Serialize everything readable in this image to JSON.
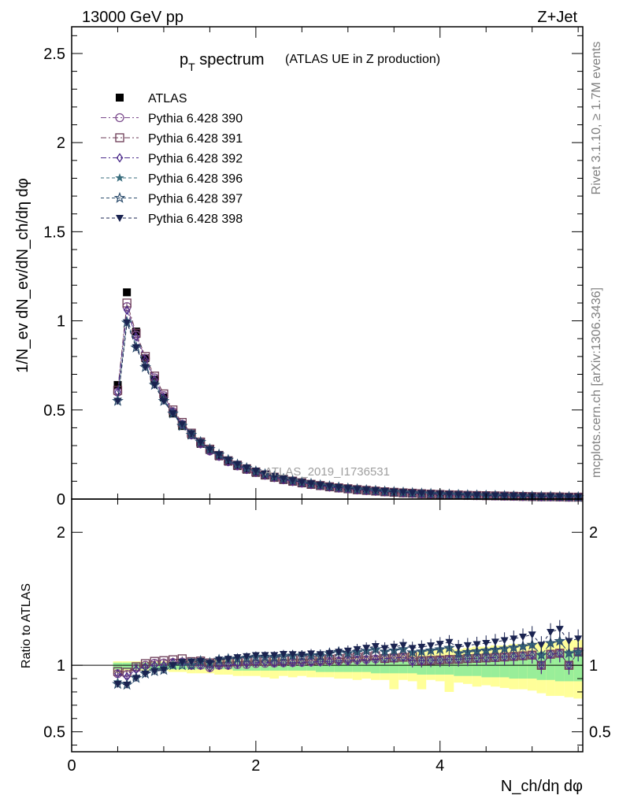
{
  "header": {
    "energy": "13000 GeV pp",
    "process": "Z+Jet"
  },
  "side_labels": {
    "rivet": "Rivet 3.1.10, ≥ 1.7M events",
    "source": "mcplots.cern.ch [arXiv:1306.3436]"
  },
  "watermark": "ATLAS_2019_I1736531",
  "colors": {
    "data": "#000000",
    "p390": "#7b4a8c",
    "p391": "#6b3a55",
    "p392": "#4b2a8a",
    "p396": "#3a6e7e",
    "p397": "#2e4e6e",
    "p398": "#1a2350",
    "band_outer": "#ffff99",
    "band_inner": "#99ee99"
  },
  "chart_data": [
    {
      "type": "line",
      "panel": "main",
      "title_main": "p",
      "title_sub": "T",
      "title_rest": " spectrum",
      "subtitle": "(ATLAS UE in Z production)",
      "ylabel": "1/N_ev dN_ev/dN_ch/dη dφ",
      "ylim": [
        0,
        2.65
      ],
      "yticks": [
        "0",
        "0.5",
        "1",
        "1.5",
        "2",
        "2.5"
      ],
      "ytick_values": [
        0,
        0.5,
        1,
        1.5,
        2,
        2.5
      ],
      "xlim": [
        0,
        5.55
      ],
      "x": [
        0.5,
        0.6,
        0.7,
        0.8,
        0.9,
        1.0,
        1.1,
        1.2,
        1.3,
        1.4,
        1.5,
        1.6,
        1.7,
        1.8,
        1.9,
        2.0,
        2.1,
        2.2,
        2.3,
        2.4,
        2.5,
        2.6,
        2.7,
        2.8,
        2.9,
        3.0,
        3.1,
        3.2,
        3.3,
        3.4,
        3.5,
        3.6,
        3.7,
        3.8,
        3.9,
        4.0,
        4.1,
        4.2,
        4.3,
        4.4,
        4.5,
        4.6,
        4.7,
        4.8,
        4.9,
        5.0,
        5.1,
        5.2,
        5.3,
        5.4,
        5.5
      ],
      "series": [
        {
          "name": "ATLAS",
          "key": "data",
          "marker": "square",
          "values": [
            0.64,
            1.16,
            0.94,
            0.79,
            0.67,
            0.57,
            0.48,
            0.41,
            0.36,
            0.31,
            0.275,
            0.24,
            0.21,
            0.185,
            0.165,
            0.147,
            0.132,
            0.119,
            0.107,
            0.097,
            0.088,
            0.08,
            0.073,
            0.066,
            0.06,
            0.055,
            0.05,
            0.046,
            0.042,
            0.039,
            0.036,
            0.033,
            0.031,
            0.029,
            0.027,
            0.025,
            0.023,
            0.022,
            0.02,
            0.019,
            0.018,
            0.017,
            0.016,
            0.015,
            0.014,
            0.013,
            0.013,
            0.012,
            0.011,
            0.011,
            0.01
          ]
        },
        {
          "name": "Pythia 6.428 390",
          "key": "p390",
          "marker": "circle",
          "values": [
            0.6,
            1.08,
            0.92,
            0.79,
            0.68,
            0.58,
            0.49,
            0.42,
            0.36,
            0.31,
            0.27,
            0.24,
            0.21,
            0.186,
            0.166,
            0.149,
            0.134,
            0.121,
            0.109,
            0.099,
            0.09,
            0.082,
            0.075,
            0.068,
            0.062,
            0.057,
            0.052,
            0.048,
            0.044,
            0.041,
            0.038,
            0.035,
            0.032,
            0.03,
            0.028,
            0.026,
            0.024,
            0.023,
            0.021,
            0.02,
            0.019,
            0.018,
            0.017,
            0.016,
            0.015,
            0.014,
            0.013,
            0.013,
            0.012,
            0.011,
            0.011
          ]
        },
        {
          "name": "Pythia 6.428 391",
          "key": "p391",
          "marker": "square-open",
          "values": [
            0.61,
            1.1,
            0.93,
            0.8,
            0.69,
            0.59,
            0.5,
            0.43,
            0.37,
            0.32,
            0.28,
            0.245,
            0.215,
            0.19,
            0.17,
            0.152,
            0.136,
            0.123,
            0.111,
            0.101,
            0.092,
            0.083,
            0.076,
            0.069,
            0.063,
            0.058,
            0.053,
            0.049,
            0.045,
            0.041,
            0.038,
            0.035,
            0.033,
            0.03,
            0.028,
            0.026,
            0.024,
            0.023,
            0.021,
            0.02,
            0.019,
            0.018,
            0.017,
            0.016,
            0.015,
            0.014,
            0.013,
            0.013,
            0.012,
            0.011,
            0.011
          ]
        },
        {
          "name": "Pythia 6.428 392",
          "key": "p392",
          "marker": "diamond",
          "values": [
            0.6,
            1.06,
            0.91,
            0.78,
            0.67,
            0.57,
            0.49,
            0.42,
            0.36,
            0.31,
            0.27,
            0.24,
            0.21,
            0.187,
            0.167,
            0.15,
            0.135,
            0.121,
            0.109,
            0.099,
            0.09,
            0.082,
            0.075,
            0.068,
            0.062,
            0.057,
            0.052,
            0.048,
            0.044,
            0.041,
            0.038,
            0.035,
            0.032,
            0.03,
            0.028,
            0.026,
            0.024,
            0.023,
            0.021,
            0.02,
            0.019,
            0.018,
            0.017,
            0.016,
            0.015,
            0.014,
            0.013,
            0.013,
            0.012,
            0.011,
            0.011
          ]
        },
        {
          "name": "Pythia 6.428 396",
          "key": "p396",
          "marker": "star",
          "values": [
            0.56,
            1.0,
            0.86,
            0.75,
            0.65,
            0.56,
            0.48,
            0.42,
            0.37,
            0.32,
            0.28,
            0.25,
            0.22,
            0.195,
            0.175,
            0.157,
            0.141,
            0.127,
            0.115,
            0.104,
            0.095,
            0.086,
            0.079,
            0.072,
            0.066,
            0.06,
            0.055,
            0.051,
            0.047,
            0.043,
            0.04,
            0.037,
            0.034,
            0.032,
            0.03,
            0.028,
            0.026,
            0.024,
            0.022,
            0.021,
            0.02,
            0.019,
            0.018,
            0.017,
            0.016,
            0.015,
            0.014,
            0.014,
            0.013,
            0.012,
            0.011
          ]
        },
        {
          "name": "Pythia 6.428 397",
          "key": "p397",
          "marker": "star-open",
          "values": [
            0.55,
            0.99,
            0.85,
            0.74,
            0.64,
            0.55,
            0.48,
            0.41,
            0.36,
            0.32,
            0.28,
            0.25,
            0.22,
            0.194,
            0.174,
            0.156,
            0.14,
            0.126,
            0.114,
            0.104,
            0.094,
            0.086,
            0.078,
            0.072,
            0.066,
            0.06,
            0.055,
            0.051,
            0.047,
            0.043,
            0.04,
            0.037,
            0.034,
            0.032,
            0.03,
            0.028,
            0.026,
            0.024,
            0.022,
            0.021,
            0.02,
            0.019,
            0.018,
            0.017,
            0.016,
            0.015,
            0.014,
            0.014,
            0.013,
            0.012,
            0.011
          ]
        },
        {
          "name": "Pythia 6.428 398",
          "key": "p398",
          "marker": "triangle-down",
          "values": [
            0.55,
            0.99,
            0.85,
            0.74,
            0.64,
            0.55,
            0.48,
            0.42,
            0.37,
            0.32,
            0.28,
            0.25,
            0.22,
            0.196,
            0.176,
            0.158,
            0.142,
            0.128,
            0.116,
            0.105,
            0.095,
            0.087,
            0.079,
            0.072,
            0.066,
            0.061,
            0.056,
            0.052,
            0.048,
            0.044,
            0.041,
            0.038,
            0.035,
            0.033,
            0.031,
            0.029,
            0.027,
            0.025,
            0.023,
            0.022,
            0.021,
            0.02,
            0.019,
            0.018,
            0.017,
            0.016,
            0.015,
            0.015,
            0.014,
            0.013,
            0.012
          ]
        }
      ]
    },
    {
      "type": "line",
      "panel": "ratio",
      "ylabel": "Ratio to ATLAS",
      "ylim": [
        0.35,
        2.25
      ],
      "yticks": [
        "0.5",
        "1",
        "2"
      ],
      "ytick_values": [
        0.5,
        1,
        2
      ],
      "xlabel": "N_ch/dη dφ",
      "xticks": [
        "0",
        "2",
        "4"
      ],
      "xtick_values": [
        0,
        2,
        4
      ],
      "xlim": [
        0,
        5.55
      ],
      "band_outer_lo": [
        0.94,
        0.95,
        0.96,
        0.96,
        0.96,
        0.96,
        0.95,
        0.95,
        0.94,
        0.94,
        0.94,
        0.93,
        0.93,
        0.92,
        0.92,
        0.92,
        0.91,
        0.9,
        0.92,
        0.91,
        0.92,
        0.91,
        0.91,
        0.91,
        0.9,
        0.9,
        0.89,
        0.9,
        0.89,
        0.89,
        0.82,
        0.89,
        0.88,
        0.82,
        0.89,
        0.88,
        0.8,
        0.87,
        0.86,
        0.84,
        0.85,
        0.84,
        0.83,
        0.82,
        0.82,
        0.81,
        0.79,
        0.77,
        0.77,
        0.76,
        0.75
      ],
      "band_outer_hi": [
        1.03,
        1.03,
        1.03,
        1.03,
        1.03,
        1.03,
        1.03,
        1.03,
        1.04,
        1.04,
        1.04,
        1.04,
        1.04,
        1.04,
        1.04,
        1.04,
        1.04,
        1.05,
        1.05,
        1.05,
        1.05,
        1.05,
        1.06,
        1.06,
        1.06,
        1.06,
        1.06,
        1.07,
        1.07,
        1.08,
        1.09,
        1.09,
        1.1,
        1.1,
        1.11,
        1.12,
        1.13,
        1.12,
        1.13,
        1.14,
        1.14,
        1.15,
        1.15,
        1.16,
        1.16,
        1.17,
        1.17,
        1.18,
        1.18,
        1.19,
        1.19
      ],
      "band_inner_lo": [
        0.97,
        0.97,
        0.97,
        0.97,
        0.97,
        0.97,
        0.97,
        0.97,
        0.97,
        0.97,
        0.97,
        0.97,
        0.97,
        0.96,
        0.96,
        0.96,
        0.96,
        0.96,
        0.96,
        0.96,
        0.96,
        0.96,
        0.95,
        0.95,
        0.95,
        0.95,
        0.95,
        0.95,
        0.94,
        0.94,
        0.94,
        0.94,
        0.94,
        0.93,
        0.93,
        0.93,
        0.93,
        0.92,
        0.92,
        0.92,
        0.91,
        0.91,
        0.91,
        0.9,
        0.9,
        0.9,
        0.89,
        0.89,
        0.88,
        0.88,
        0.88
      ],
      "band_inner_hi": [
        1.02,
        1.02,
        1.02,
        1.02,
        1.02,
        1.02,
        1.02,
        1.02,
        1.02,
        1.02,
        1.02,
        1.02,
        1.02,
        1.03,
        1.03,
        1.03,
        1.03,
        1.03,
        1.03,
        1.03,
        1.03,
        1.03,
        1.04,
        1.04,
        1.04,
        1.04,
        1.04,
        1.04,
        1.05,
        1.05,
        1.05,
        1.05,
        1.05,
        1.06,
        1.06,
        1.06,
        1.06,
        1.07,
        1.07,
        1.07,
        1.08,
        1.08,
        1.08,
        1.09,
        1.09,
        1.09,
        1.1,
        1.1,
        1.11,
        1.11,
        1.11
      ],
      "reference": 1
    }
  ]
}
